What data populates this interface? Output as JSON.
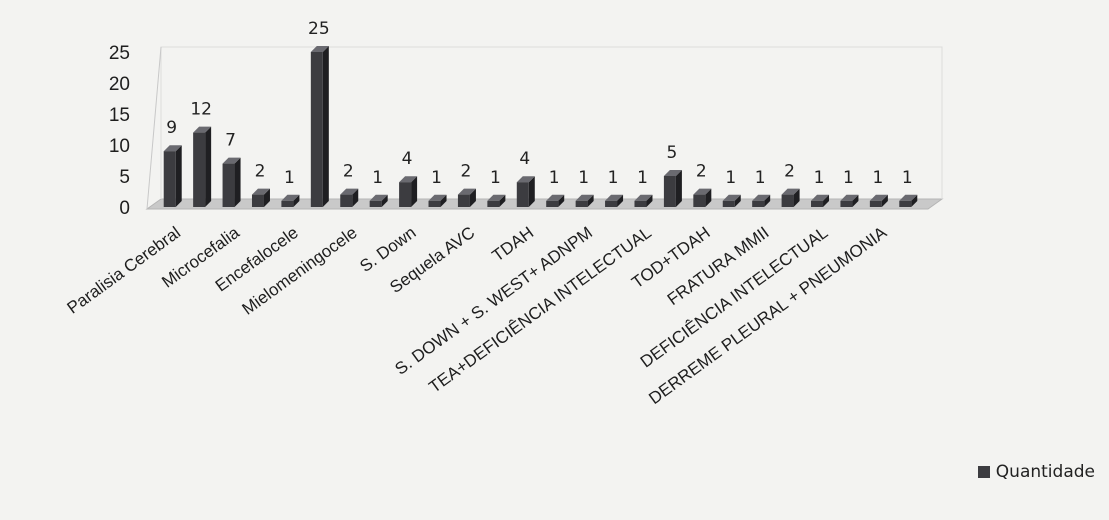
{
  "chart_data": {
    "type": "bar",
    "title": "",
    "xlabel": "",
    "ylabel": "",
    "ylim": [
      0,
      25
    ],
    "yticks": [
      "0",
      "5",
      "10",
      "15",
      "20",
      "25"
    ],
    "grid": false,
    "legend": "bottom-right",
    "categories": [
      "Paralisia Cerebral",
      "",
      "Microcefalia",
      "",
      "Encefalocele",
      "",
      "Mielomeningocele",
      "",
      "S. Down",
      "",
      "Sequela AVC",
      "",
      "TDAH",
      "",
      "S. DOWN + S. WEST+ ADNPM",
      "",
      "TEA+DEFICIÊNCIA INTELECTUAL",
      "",
      "TOD+TDAH",
      "",
      "FRATURA MMII",
      "",
      "DEFICIÊNCIA INTELECTUAL",
      "",
      "DERREME PLEURAL + PNEUMONIA",
      ""
    ],
    "series": [
      {
        "name": "Quantidade",
        "color": "#3c3c40",
        "values": [
          9,
          12,
          7,
          2,
          1,
          25,
          2,
          1,
          4,
          1,
          2,
          1,
          4,
          1,
          1,
          1,
          1,
          5,
          2,
          1,
          1,
          2,
          1,
          1,
          1,
          1
        ]
      }
    ]
  }
}
